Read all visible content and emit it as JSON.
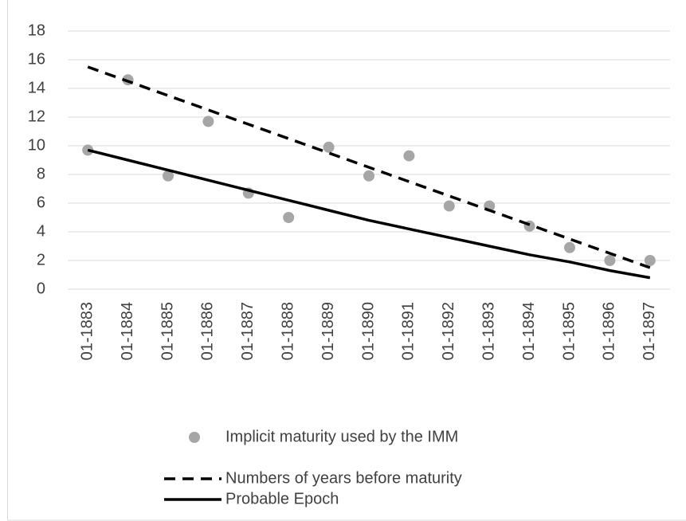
{
  "chart_data": {
    "type": "line",
    "categories": [
      "01-1883",
      "01-1884",
      "01-1885",
      "01-1886",
      "01-1887",
      "01-1888",
      "01-1889",
      "01-1890",
      "01-1891",
      "01-1892",
      "01-1893",
      "01-1894",
      "01-1895",
      "01-1896",
      "01-1897"
    ],
    "series": [
      {
        "name": "Implicit maturity used by the IMM",
        "color": "#a6a6a6",
        "mode": "markers",
        "values": [
          9.7,
          14.6,
          7.9,
          11.7,
          6.7,
          5.0,
          9.9,
          7.9,
          9.3,
          5.8,
          5.8,
          4.4,
          2.9,
          2.0,
          2.0
        ]
      },
      {
        "name": "Numbers of years before maturity",
        "color": "#000000",
        "mode": "dashed",
        "values": [
          15.5,
          14.5,
          13.5,
          12.5,
          11.5,
          10.5,
          9.5,
          8.5,
          7.5,
          6.5,
          5.5,
          4.5,
          3.5,
          2.5,
          1.5
        ]
      },
      {
        "name": "Probable Epoch",
        "color": "#000000",
        "mode": "solid",
        "values": [
          9.7,
          9.0,
          8.3,
          7.6,
          6.9,
          6.2,
          5.5,
          4.8,
          4.2,
          3.6,
          3.0,
          2.4,
          1.9,
          1.3,
          0.8
        ]
      }
    ],
    "ylim": [
      0,
      18
    ],
    "yticks": [
      0,
      2,
      4,
      6,
      8,
      10,
      12,
      14,
      16,
      18
    ],
    "grid": true
  }
}
